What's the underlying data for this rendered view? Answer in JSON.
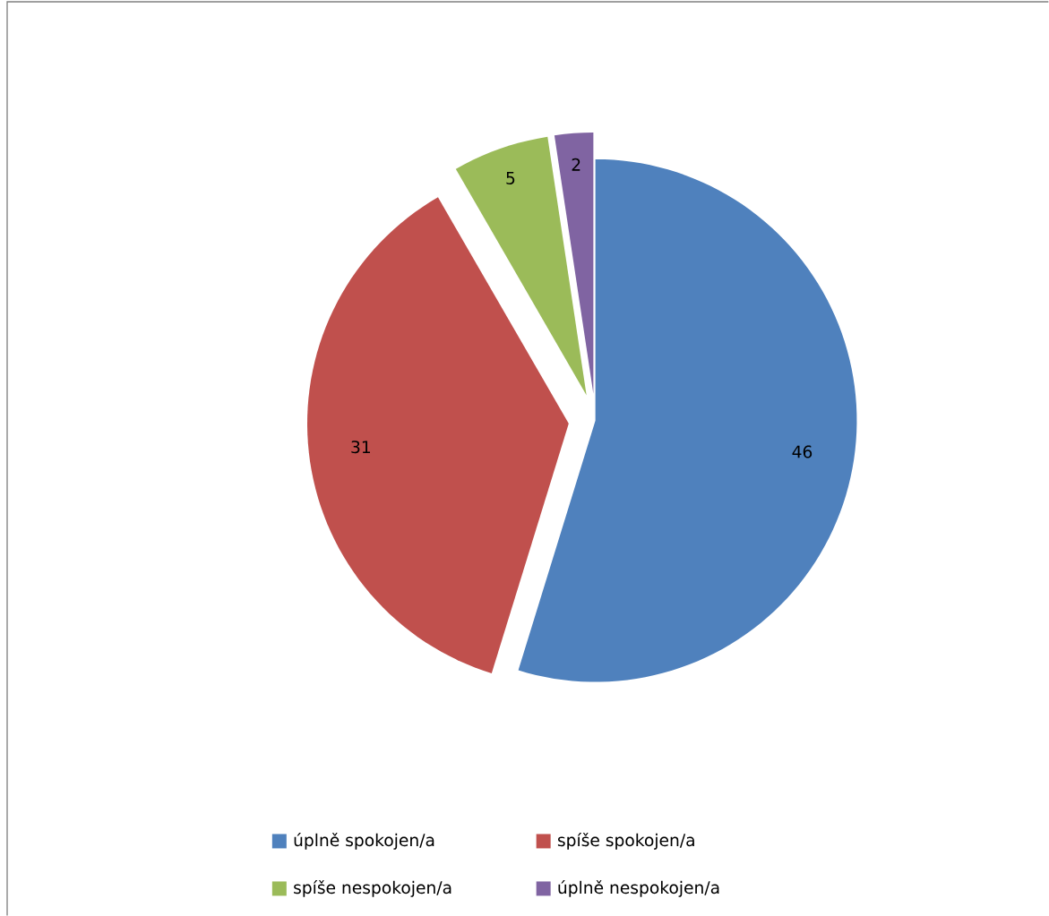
{
  "chart_data": {
    "type": "pie",
    "categories": [
      "úplně spokojen/a",
      "spíše spokojen/a",
      "spíše nespokojen/a",
      "úplně nespokojen/a"
    ],
    "values": [
      46,
      31,
      5,
      2
    ],
    "colors": [
      "#4f81bd",
      "#c0504d",
      "#9bbb59",
      "#8064a2"
    ],
    "data_labels": true,
    "legend": "bottom"
  }
}
